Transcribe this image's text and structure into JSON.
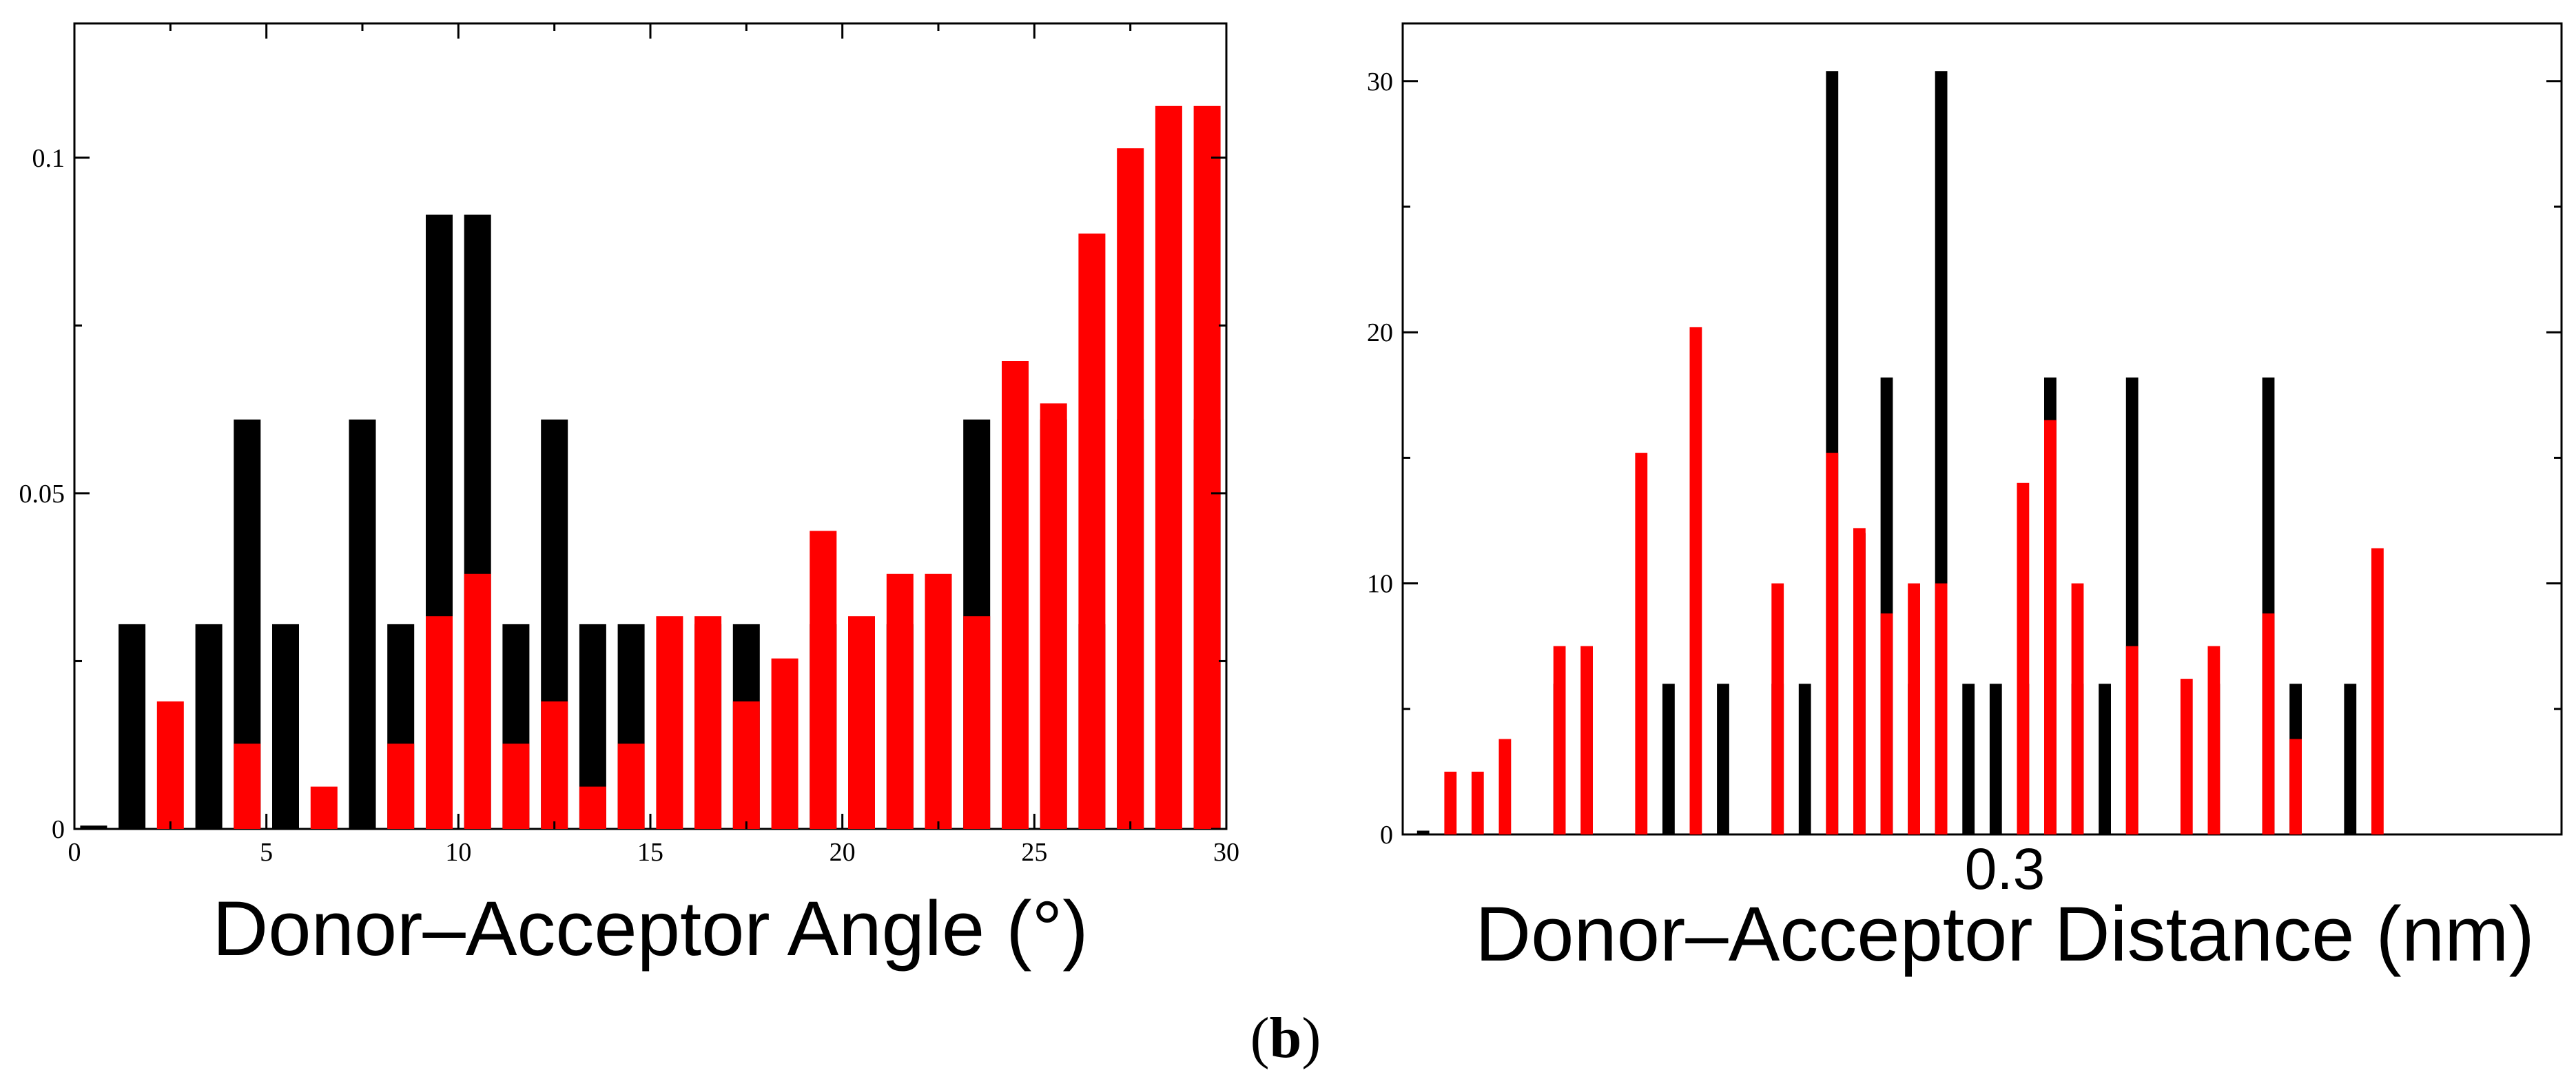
{
  "panel_label": {
    "open": "(",
    "letter": "b",
    "close": ")"
  },
  "chart_data": [
    {
      "type": "bar",
      "name": "angle-histogram",
      "xlabel": "Donor–Acceptor Angle (°)",
      "ylabel": "",
      "xlim": [
        0,
        30
      ],
      "ylim": [
        0,
        0.12
      ],
      "xticks": [
        0,
        5,
        10,
        15,
        20,
        25,
        30
      ],
      "xtick_labels": [
        "0",
        "5",
        "10",
        "15",
        "20",
        "25",
        "30"
      ],
      "yticks": [
        0,
        0.05,
        0.1
      ],
      "ytick_labels": [
        "0",
        "0.05",
        "0.1"
      ],
      "bar_width": 0.7,
      "series": [
        {
          "name": "black",
          "color": "#000000",
          "x": [
            0.5,
            1.5,
            2.5,
            3.5,
            4.5,
            5.5,
            6.5,
            7.5,
            8.5,
            9.5,
            10.5,
            11.5,
            12.5,
            13.5,
            14.5,
            15.5,
            16.5,
            17.5,
            18.5,
            19.5,
            20.5,
            21.5,
            22.5,
            23.5,
            24.5,
            25.5,
            26.5,
            27.5,
            28.5,
            29.5
          ],
          "values": [
            0.0005,
            0.0305,
            0,
            0.0305,
            0.061,
            0.0305,
            0,
            0.061,
            0.0305,
            0.0915,
            0.0915,
            0.0305,
            0.061,
            0.0305,
            0.0305,
            0,
            0.0305,
            0.0305,
            0,
            0.0305,
            0.0305,
            0.0305,
            0,
            0.061,
            0,
            0.061,
            0.0305,
            0.061,
            0,
            0.061
          ]
        },
        {
          "name": "red",
          "color": "#ff0000",
          "x": [
            2.5,
            4.5,
            6.5,
            8.5,
            9.5,
            10.5,
            11.5,
            12.5,
            13.5,
            14.5,
            15.5,
            16.5,
            17.5,
            18.5,
            19.5,
            20.5,
            21.5,
            22.5,
            23.5,
            24.5,
            25.5,
            26.5,
            27.5,
            28.5,
            29.5
          ],
          "values": [
            0.019,
            0.0127,
            0.0063,
            0.0127,
            0.0317,
            0.038,
            0.0127,
            0.019,
            0.0063,
            0.0127,
            0.0317,
            0.0317,
            0.019,
            0.0254,
            0.0444,
            0.0317,
            0.038,
            0.038,
            0.0317,
            0.0697,
            0.0634,
            0.0887,
            0.1014,
            0.1077,
            0.1077
          ]
        }
      ]
    },
    {
      "type": "bar",
      "name": "distance-histogram",
      "xlabel": "Donor–Acceptor Distance (nm)",
      "x_annotation": "0.3",
      "ylabel": "",
      "xlim": [
        0.2575,
        0.3425
      ],
      "ylim": [
        0,
        32.3
      ],
      "yticks": [
        0,
        10,
        20,
        30
      ],
      "ytick_labels": [
        "0",
        "10",
        "20",
        "30"
      ],
      "bar_width": 0.0009,
      "series": [
        {
          "name": "black",
          "color": "#000000",
          "x": [
            0.259,
            0.263,
            0.269,
            0.271,
            0.277,
            0.281,
            0.285,
            0.287,
            0.289,
            0.291,
            0.293,
            0.295,
            0.297,
            0.299,
            0.301,
            0.303,
            0.305,
            0.307,
            0.309,
            0.311,
            0.315,
            0.317,
            0.319,
            0.321,
            0.323,
            0.325,
            0.327
          ],
          "values": [
            0.15,
            0,
            6,
            0,
            6,
            6,
            6,
            6,
            30.4,
            12,
            18.2,
            6,
            30.4,
            6,
            6,
            6,
            18.2,
            6,
            6,
            18.2,
            0,
            6,
            0,
            18.2,
            6,
            0,
            6
          ]
        },
        {
          "name": "red",
          "color": "#ff0000",
          "x": [
            0.261,
            0.263,
            0.265,
            0.269,
            0.271,
            0.275,
            0.279,
            0.285,
            0.289,
            0.291,
            0.293,
            0.295,
            0.297,
            0.299,
            0.301,
            0.303,
            0.305,
            0.307,
            0.311,
            0.315,
            0.317,
            0.321,
            0.323,
            0.325,
            0.327,
            0.329
          ],
          "values": [
            2.5,
            2.5,
            3.8,
            7.5,
            7.5,
            15.2,
            20.2,
            10,
            15.2,
            12.2,
            8.8,
            10,
            10,
            0,
            0,
            14,
            16.5,
            10,
            7.5,
            6.2,
            7.5,
            8.8,
            3.8,
            0,
            0,
            11.4
          ]
        }
      ]
    }
  ]
}
